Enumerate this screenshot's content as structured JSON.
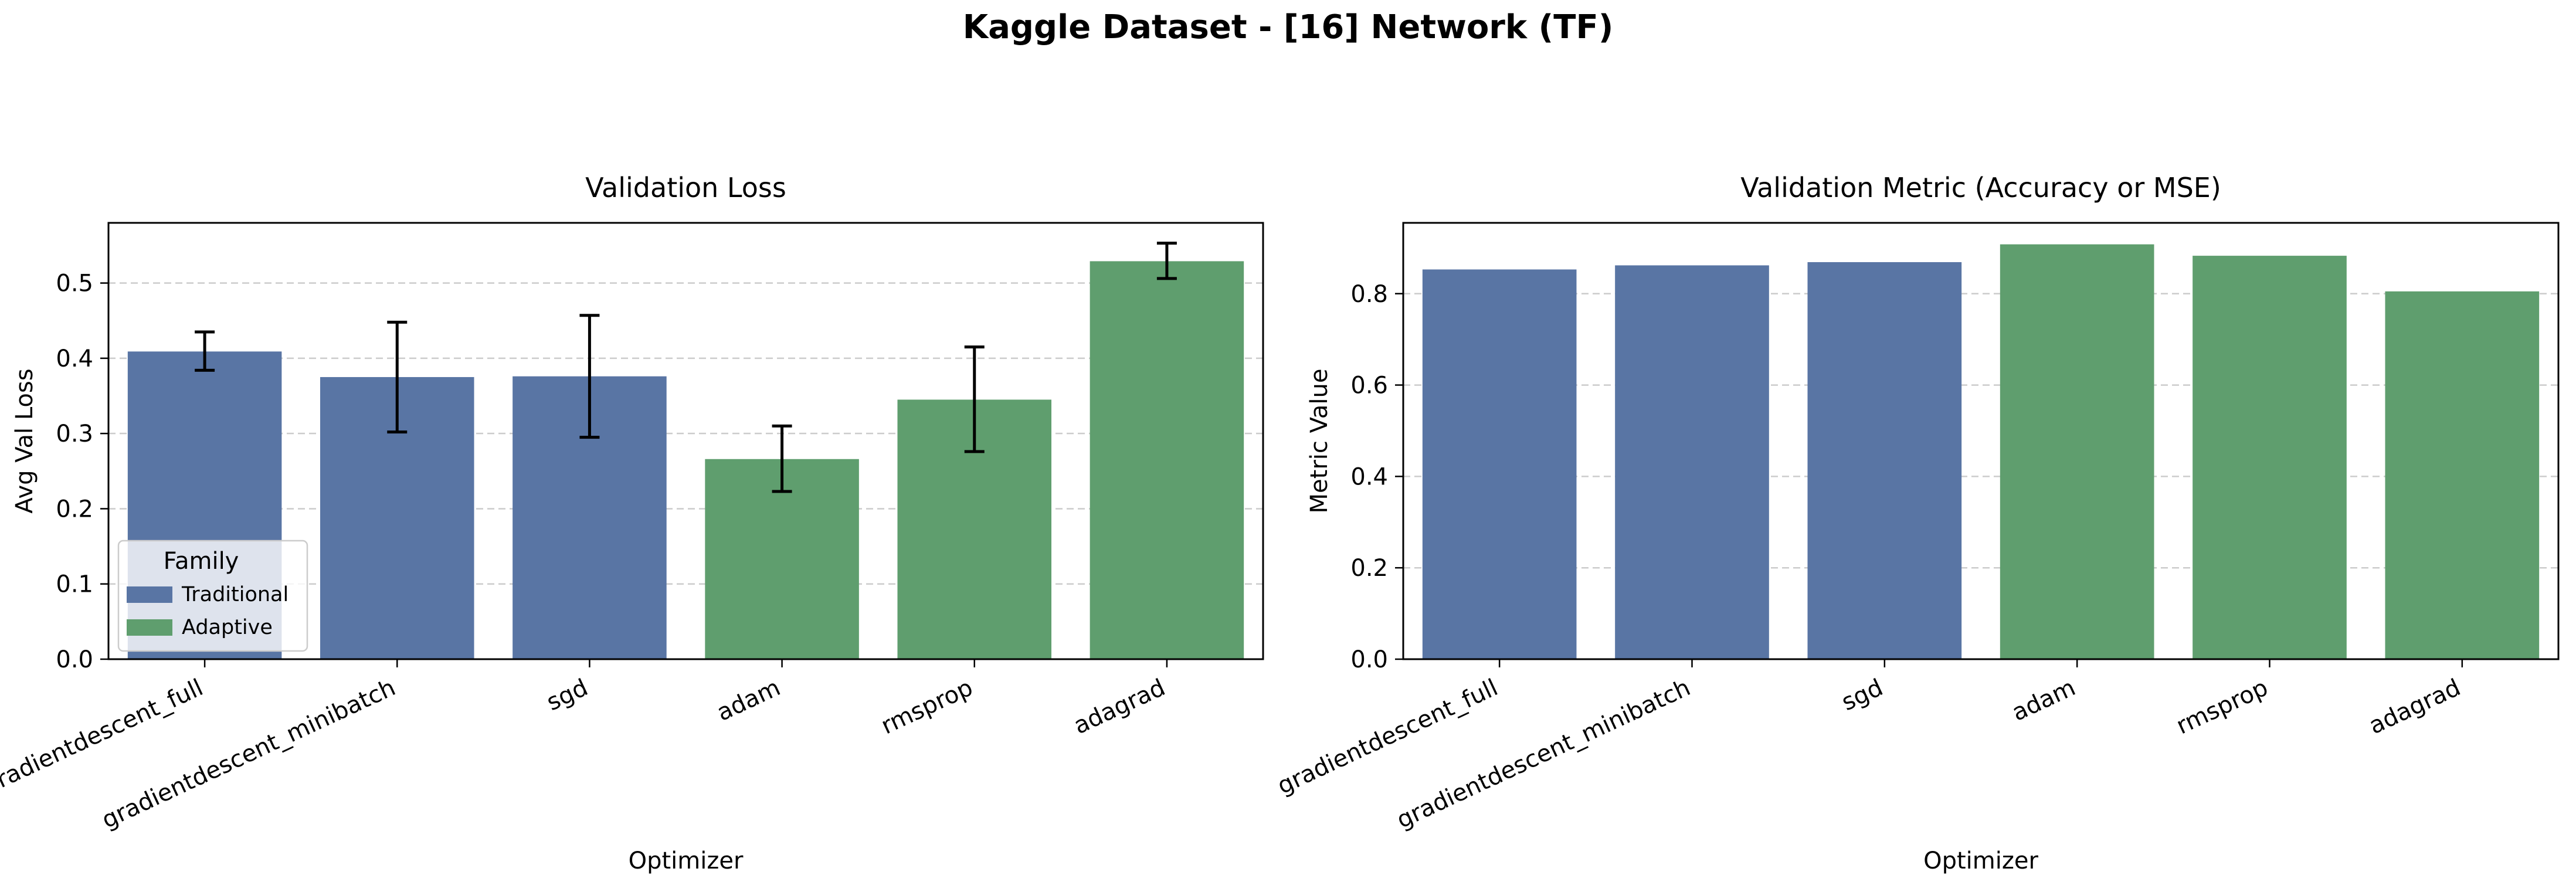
{
  "figure": {
    "title": "Kaggle Dataset - [16] Network (TF)"
  },
  "colors": {
    "traditional": "#5975a4",
    "adaptive": "#5f9e6e",
    "grid": "#cccccc",
    "errorbar": "#000000"
  },
  "chart_data": [
    {
      "type": "bar",
      "title": "Validation Loss",
      "xlabel": "Optimizer",
      "ylabel": "Avg Val Loss",
      "ylim": [
        0,
        0.58
      ],
      "yticks": [
        "0.0",
        "0.1",
        "0.2",
        "0.3",
        "0.4",
        "0.5"
      ],
      "grid": "y-dashed",
      "categories": [
        "gradientdescent_full",
        "gradientdescent_minibatch",
        "sgd",
        "adam",
        "rmsprop",
        "adagrad"
      ],
      "family": [
        "Traditional",
        "Traditional",
        "Traditional",
        "Adaptive",
        "Adaptive",
        "Adaptive"
      ],
      "values": [
        0.409,
        0.375,
        0.376,
        0.266,
        0.345,
        0.529
      ],
      "error_low": [
        0.384,
        0.302,
        0.295,
        0.223,
        0.276,
        0.506
      ],
      "error_high": [
        0.435,
        0.448,
        0.457,
        0.31,
        0.415,
        0.553
      ],
      "legend": {
        "title": "Family",
        "placement": "lower-left",
        "entries": [
          {
            "label": "Traditional",
            "color": "#5975a4"
          },
          {
            "label": "Adaptive",
            "color": "#5f9e6e"
          }
        ]
      }
    },
    {
      "type": "bar",
      "title": "Validation Metric (Accuracy or MSE)",
      "xlabel": "Optimizer",
      "ylabel": "Metric Value",
      "ylim": [
        0,
        0.955
      ],
      "yticks": [
        "0.0",
        "0.2",
        "0.4",
        "0.6",
        "0.8"
      ],
      "grid": "y-dashed",
      "categories": [
        "gradientdescent_full",
        "gradientdescent_minibatch",
        "sgd",
        "adam",
        "rmsprop",
        "adagrad"
      ],
      "family": [
        "Traditional",
        "Traditional",
        "Traditional",
        "Adaptive",
        "Adaptive",
        "Adaptive"
      ],
      "values": [
        0.853,
        0.862,
        0.869,
        0.908,
        0.883,
        0.805
      ]
    }
  ]
}
